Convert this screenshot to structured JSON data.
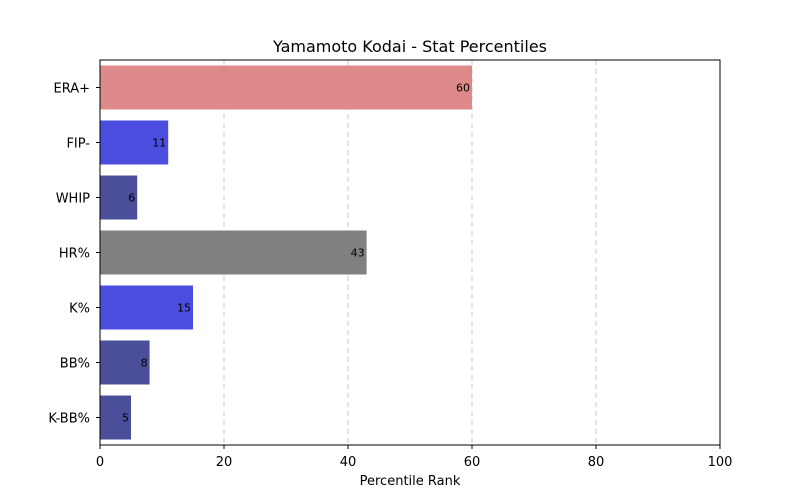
{
  "chart_data": {
    "type": "bar",
    "orientation": "horizontal",
    "title": "Yamamoto Kodai - Stat Percentiles",
    "xlabel": "Percentile Rank",
    "ylabel": "",
    "xlim": [
      0,
      100
    ],
    "xticks": [
      0,
      20,
      40,
      60,
      80,
      100
    ],
    "grid": "x-dashed",
    "categories": [
      "ERA+",
      "FIP-",
      "WHIP",
      "HR%",
      "K%",
      "BB%",
      "K-BB%"
    ],
    "values": [
      60,
      11,
      6,
      43,
      15,
      8,
      5
    ],
    "colors": [
      "#de8a8a",
      "#4b4ddf",
      "#4b4f99",
      "#808080",
      "#4b4ddf",
      "#4b4f99",
      "#4b4f99"
    ]
  }
}
